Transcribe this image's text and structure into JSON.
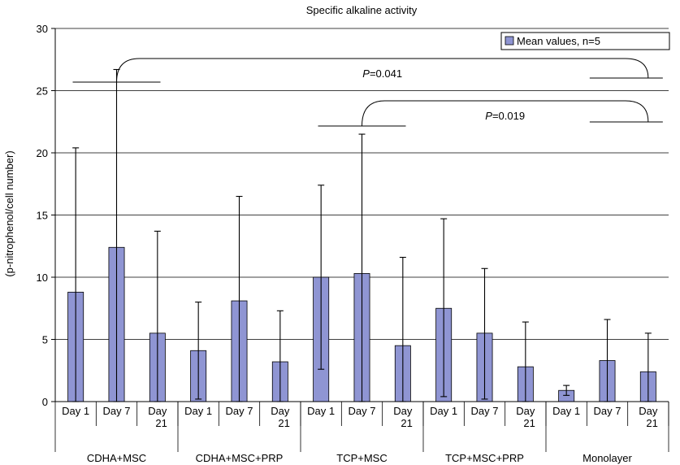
{
  "chart_data": {
    "type": "bar",
    "title": "Specific alkaline activity",
    "ylabel": "(p-nitrophenol/cell number)",
    "ylim": [
      0,
      30
    ],
    "yticks": [
      0,
      5,
      10,
      15,
      20,
      25,
      30
    ],
    "grid": true,
    "legend": {
      "label": "Mean values, n=5",
      "placement": "top-right"
    },
    "bar_color": "#8f95d3",
    "groups": [
      {
        "name": "CDHA+MSC",
        "bars": [
          {
            "label": "Day 1",
            "value": 8.8,
            "err_low": 0.0,
            "err_high": 20.4
          },
          {
            "label": "Day 7",
            "value": 12.4,
            "err_low": 0.0,
            "err_high": 26.7
          },
          {
            "label": "Day 21",
            "value": 5.5,
            "err_low": 0.0,
            "err_high": 13.7
          }
        ]
      },
      {
        "name": "CDHA+MSC+PRP",
        "bars": [
          {
            "label": "Day 1",
            "value": 4.1,
            "err_low": 0.2,
            "err_high": 8.0
          },
          {
            "label": "Day 7",
            "value": 8.1,
            "err_low": 0.0,
            "err_high": 16.5
          },
          {
            "label": "Day 21",
            "value": 3.2,
            "err_low": 0.0,
            "err_high": 7.3
          }
        ]
      },
      {
        "name": "TCP+MSC",
        "bars": [
          {
            "label": "Day 1",
            "value": 10.0,
            "err_low": 2.6,
            "err_high": 17.4
          },
          {
            "label": "Day 7",
            "value": 10.3,
            "err_low": 0.0,
            "err_high": 21.5
          },
          {
            "label": "Day 21",
            "value": 4.5,
            "err_low": 0.0,
            "err_high": 11.6
          }
        ]
      },
      {
        "name": "TCP+MSC+PRP",
        "bars": [
          {
            "label": "Day 1",
            "value": 7.5,
            "err_low": 0.4,
            "err_high": 14.7
          },
          {
            "label": "Day 7",
            "value": 5.5,
            "err_low": 0.2,
            "err_high": 10.7
          },
          {
            "label": "Day 21",
            "value": 2.8,
            "err_low": 0.0,
            "err_high": 6.4
          }
        ]
      },
      {
        "name": "Monolayer",
        "bars": [
          {
            "label": "Day 1",
            "value": 0.9,
            "err_low": 0.5,
            "err_high": 1.3
          },
          {
            "label": "Day 7",
            "value": 3.3,
            "err_low": 0.0,
            "err_high": 6.6
          },
          {
            "label": "Day 21",
            "value": 2.4,
            "err_low": 0.0,
            "err_high": 5.5
          }
        ]
      }
    ],
    "annotations": [
      {
        "text": "P=0.041",
        "p_label": "P",
        "p_value": "=0.041",
        "from_group": "CDHA+MSC",
        "from_bar": "Day 7",
        "to_group": "Monolayer",
        "to_bar": "Day 21"
      },
      {
        "text": "P=0.019",
        "p_label": "P",
        "p_value": "=0.019",
        "from_group": "TCP+MSC",
        "from_bar": "Day 7",
        "to_group": "Monolayer",
        "to_bar": "Day 21"
      }
    ]
  }
}
